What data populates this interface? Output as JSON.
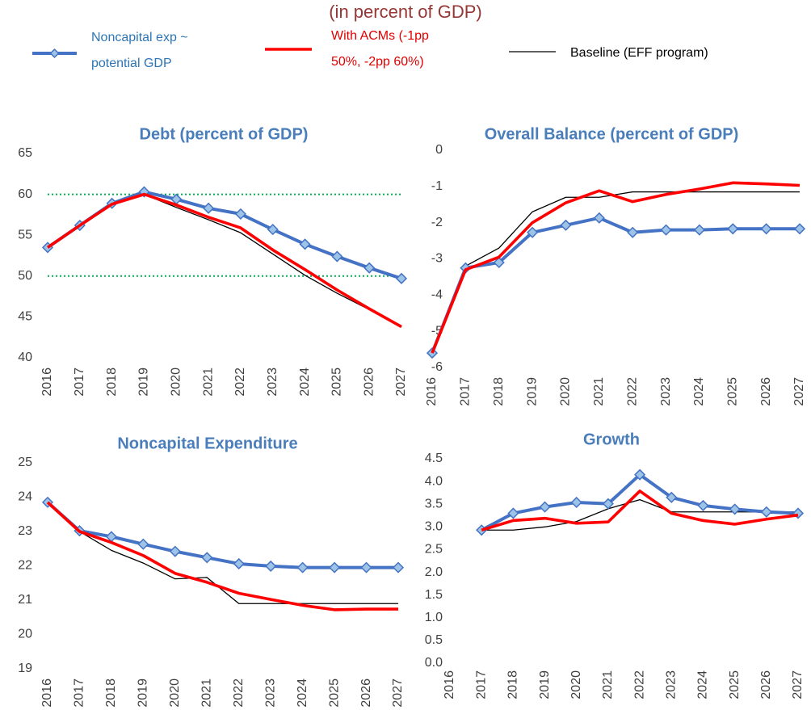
{
  "title": "(in percent of GDP)",
  "chart_data": [
    {
      "type": "line",
      "title": "Debt (percent of GDP)",
      "categories": [
        "2016",
        "2017",
        "2018",
        "2019",
        "2020",
        "2021",
        "2022",
        "2023",
        "2024",
        "2025",
        "2026",
        "2027"
      ],
      "series": [
        {
          "name": "Noncapital exp ~ potential GDP",
          "color": "#4472c4",
          "marker": "diamond",
          "values": [
            53.5,
            56.2,
            58.9,
            60.3,
            59.4,
            58.3,
            57.6,
            55.7,
            53.9,
            52.4,
            51.0,
            49.7
          ]
        },
        {
          "name": "With ACMs (-1pp 50%, -2pp 60%)",
          "color": "#ff0000",
          "values": [
            53.5,
            56.2,
            58.8,
            60.0,
            58.7,
            57.2,
            55.9,
            53.2,
            50.8,
            48.3,
            46.0,
            43.8
          ]
        },
        {
          "name": "Baseline (EFF program)",
          "color": "#000000",
          "values": [
            53.5,
            56.2,
            58.8,
            60.0,
            58.4,
            56.9,
            55.3,
            52.7,
            50.1,
            47.9,
            45.9,
            43.8
          ]
        }
      ],
      "reference_lines": [
        60,
        50
      ],
      "reference_color": "#00b050",
      "ylim": [
        40,
        65
      ],
      "yticks": [
        40,
        45,
        50,
        55,
        60,
        65
      ]
    },
    {
      "type": "line",
      "title": "Overall Balance (percent of GDP)",
      "categories": [
        "2016",
        "2017",
        "2018",
        "2019",
        "2020",
        "2021",
        "2022",
        "2023",
        "2024",
        "2025",
        "2026",
        "2027"
      ],
      "series": [
        {
          "name": "Noncapital exp ~ potential GDP",
          "color": "#4472c4",
          "marker": "diamond",
          "values": [
            -5.6,
            -3.25,
            -3.1,
            -2.27,
            -2.07,
            -1.87,
            -2.27,
            -2.2,
            -2.2,
            -2.17,
            -2.17,
            -2.17
          ]
        },
        {
          "name": "With ACMs (-1pp 50%, -2pp 60%)",
          "color": "#ff0000",
          "values": [
            -5.6,
            -3.3,
            -2.95,
            -2.0,
            -1.45,
            -1.12,
            -1.42,
            -1.22,
            -1.07,
            -0.9,
            -0.93,
            -0.97
          ]
        },
        {
          "name": "Baseline (EFF program)",
          "color": "#000000",
          "values": [
            -5.6,
            -3.2,
            -2.7,
            -1.7,
            -1.3,
            -1.3,
            -1.15,
            -1.15,
            -1.15,
            -1.15,
            -1.15,
            -1.15
          ]
        }
      ],
      "ylim": [
        -6,
        0
      ],
      "yticks": [
        -6,
        -5,
        -4,
        -3,
        -2,
        -1,
        0
      ]
    },
    {
      "type": "line",
      "title": "Noncapital Expenditure",
      "categories": [
        "2016",
        "2017",
        "2018",
        "2019",
        "2020",
        "2021",
        "2022",
        "2023",
        "2024",
        "2025",
        "2026",
        "2027"
      ],
      "series": [
        {
          "name": "Noncapital exp ~ potential GDP",
          "color": "#4472c4",
          "marker": "diamond",
          "values": [
            23.85,
            23.02,
            22.85,
            22.63,
            22.42,
            22.24,
            22.06,
            21.99,
            21.95,
            21.95,
            21.95,
            21.95
          ]
        },
        {
          "name": "With ACMs (-1pp 50%, -2pp 60%)",
          "color": "#ff0000",
          "values": [
            23.85,
            23.0,
            22.68,
            22.3,
            21.78,
            21.52,
            21.2,
            21.02,
            20.85,
            20.72,
            20.74,
            20.74
          ]
        },
        {
          "name": "Baseline (EFF program)",
          "color": "#000000",
          "values": [
            23.85,
            23.0,
            22.45,
            22.08,
            21.62,
            21.66,
            20.9,
            20.9,
            20.9,
            20.9,
            20.9,
            20.9
          ]
        }
      ],
      "ylim": [
        19,
        25
      ],
      "yticks": [
        19,
        20,
        21,
        22,
        23,
        24,
        25
      ]
    },
    {
      "type": "line",
      "title": "Growth",
      "categories": [
        "2016",
        "2017",
        "2018",
        "2019",
        "2020",
        "2021",
        "2022",
        "2023",
        "2024",
        "2025",
        "2026",
        "2027"
      ],
      "series": [
        {
          "name": "Noncapital exp ~ potential GDP",
          "color": "#4472c4",
          "marker": "diamond",
          "values": [
            null,
            2.93,
            3.3,
            3.44,
            3.54,
            3.51,
            4.15,
            3.65,
            3.47,
            3.39,
            3.33,
            3.3
          ]
        },
        {
          "name": "With ACMs (-1pp 50%, -2pp 60%)",
          "color": "#ff0000",
          "values": [
            null,
            2.93,
            3.14,
            3.19,
            3.08,
            3.11,
            3.79,
            3.3,
            3.14,
            3.06,
            3.17,
            3.26
          ]
        },
        {
          "name": "Baseline (EFF program)",
          "color": "#000000",
          "values": [
            null,
            2.93,
            2.93,
            3.0,
            3.12,
            3.4,
            3.6,
            3.33,
            3.33,
            3.33,
            3.33,
            3.33
          ]
        }
      ],
      "ylim": [
        0,
        4.5
      ],
      "yticks": [
        {
          "value": 0,
          "label": "0.0"
        },
        0.5,
        {
          "value": 1,
          "label": "1.0"
        },
        1.5,
        {
          "value": 2,
          "label": "2.0"
        },
        2.5,
        {
          "value": 3,
          "label": "3.0"
        },
        3.5,
        {
          "value": 4,
          "label": "4.0"
        },
        4.5
      ]
    }
  ]
}
